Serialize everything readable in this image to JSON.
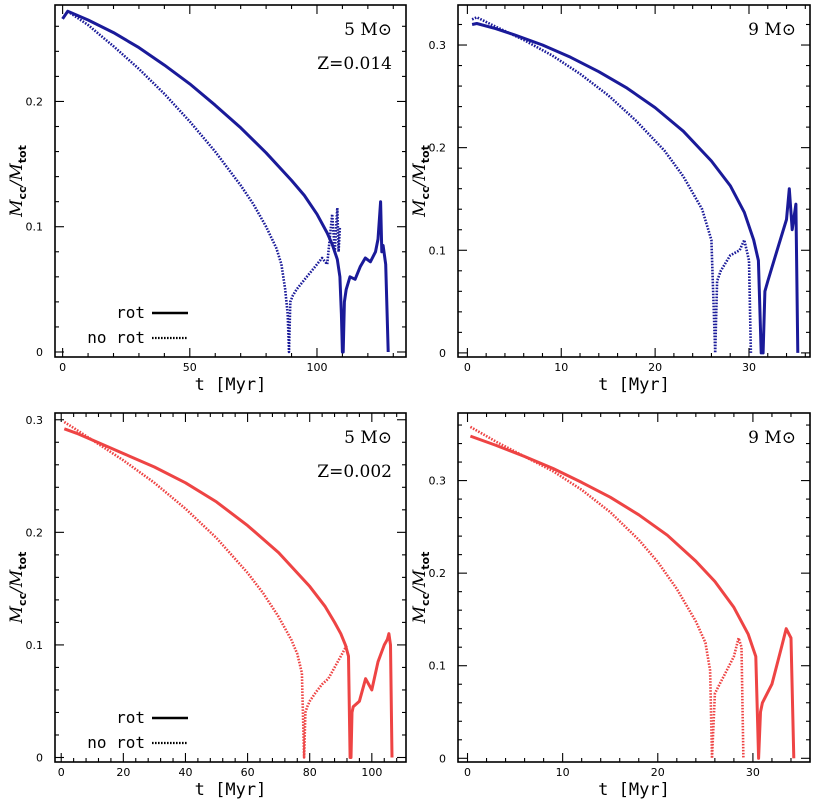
{
  "figure": {
    "width": 814,
    "height": 799
  },
  "legend_labels": {
    "solid": "rot",
    "dotted": "no rot"
  },
  "chart_data": [
    {
      "type": "line",
      "title": "",
      "xlabel": "t [Myr]",
      "ylabel": "M_cc/M_tot",
      "ylabel_main": "M",
      "ylabel_sub1": "cc",
      "ylabel_sub2": "tot",
      "xlim": [
        -3,
        135
      ],
      "ylim": [
        -0.004,
        0.277
      ],
      "xticks": [
        0,
        50,
        100
      ],
      "yticks": [
        0,
        0.1,
        0.2
      ],
      "ytick_labels": [
        "0",
        "0.1",
        "0.2"
      ],
      "color": "#1a1a99",
      "annotations": [
        "5 M⊙",
        "Z=0.014"
      ],
      "legend": [
        "rot",
        "no rot"
      ],
      "series": [
        {
          "name": "rot",
          "style": "solid",
          "x": [
            0,
            2,
            10,
            20,
            30,
            40,
            50,
            60,
            70,
            80,
            90,
            95,
            100,
            104,
            106,
            108,
            109,
            109.6,
            110,
            110.3,
            110.8,
            111.5,
            113,
            115,
            117,
            119,
            121,
            123,
            124,
            125,
            125.5,
            126,
            127,
            128
          ],
          "y": [
            0.266,
            0.272,
            0.265,
            0.255,
            0.243,
            0.229,
            0.214,
            0.197,
            0.179,
            0.159,
            0.137,
            0.125,
            0.11,
            0.095,
            0.086,
            0.074,
            0.06,
            0.03,
            0.0,
            0.0,
            0.04,
            0.05,
            0.06,
            0.058,
            0.068,
            0.075,
            0.072,
            0.08,
            0.09,
            0.12,
            0.08,
            0.085,
            0.07,
            0.0
          ]
        },
        {
          "name": "no rot",
          "style": "dotted",
          "x": [
            0,
            2,
            10,
            20,
            30,
            40,
            50,
            60,
            70,
            75,
            80,
            84,
            86,
            87.5,
            88.5,
            89,
            89.5,
            90.5,
            92,
            94,
            96,
            98,
            100,
            102,
            104,
            106,
            107,
            108,
            108.5,
            109
          ],
          "y": [
            0.266,
            0.272,
            0.261,
            0.244,
            0.226,
            0.206,
            0.184,
            0.16,
            0.133,
            0.118,
            0.1,
            0.083,
            0.07,
            0.05,
            0.03,
            0.0,
            0.04,
            0.045,
            0.05,
            0.055,
            0.06,
            0.065,
            0.07,
            0.075,
            0.07,
            0.11,
            0.08,
            0.115,
            0.08,
            0.1
          ]
        }
      ]
    },
    {
      "type": "line",
      "title": "",
      "xlabel": "t [Myr]",
      "ylabel": "M_cc/M_tot",
      "ylabel_main": "M",
      "ylabel_sub1": "cc",
      "ylabel_sub2": "tot",
      "xlim": [
        -1,
        36.5
      ],
      "ylim": [
        -0.004,
        0.339
      ],
      "xticks": [
        0,
        10,
        20,
        30
      ],
      "yticks": [
        0,
        0.1,
        0.2,
        0.3
      ],
      "ytick_labels": [
        "0",
        "0.1",
        "0.2",
        "0.3"
      ],
      "color": "#1a1a99",
      "annotations": [
        "9 M⊙"
      ],
      "legend": [],
      "series": [
        {
          "name": "rot",
          "style": "solid",
          "x": [
            0.5,
            1,
            3,
            5,
            8,
            11,
            14,
            17,
            20,
            23,
            26,
            28,
            29.5,
            30.5,
            31,
            31.3,
            31.5,
            31.7,
            32,
            33,
            34,
            34.3,
            34.6,
            35,
            35.2
          ],
          "y": [
            0.32,
            0.321,
            0.316,
            0.31,
            0.3,
            0.288,
            0.274,
            0.258,
            0.239,
            0.216,
            0.187,
            0.163,
            0.137,
            0.11,
            0.09,
            0.0,
            0.0,
            0.06,
            0.07,
            0.1,
            0.13,
            0.16,
            0.12,
            0.145,
            0.0
          ]
        },
        {
          "name": "no rot",
          "style": "dotted",
          "x": [
            0.5,
            1,
            3,
            6,
            9,
            12,
            15,
            18,
            21,
            23,
            25,
            26,
            26.4,
            26.6,
            27,
            28,
            29,
            29.5,
            30,
            30.2
          ],
          "y": [
            0.325,
            0.327,
            0.318,
            0.305,
            0.29,
            0.272,
            0.251,
            0.226,
            0.197,
            0.172,
            0.14,
            0.11,
            0.0,
            0.07,
            0.08,
            0.095,
            0.1,
            0.11,
            0.09,
            0.0
          ]
        }
      ]
    },
    {
      "type": "line",
      "title": "",
      "xlabel": "t [Myr]",
      "ylabel": "M_cc/M_tot",
      "ylabel_main": "M",
      "ylabel_sub1": "cc",
      "ylabel_sub2": "tot",
      "xlim": [
        -2,
        111
      ],
      "ylim": [
        -0.004,
        0.306
      ],
      "xticks": [
        0,
        20,
        40,
        60,
        80,
        100
      ],
      "yticks": [
        0,
        0.1,
        0.2,
        0.3
      ],
      "ytick_labels": [
        "0",
        "0.1",
        "0.2",
        "0.3"
      ],
      "color": "#ee4444",
      "annotations": [
        "5 M⊙",
        "Z=0.002"
      ],
      "legend": [
        "rot",
        "no rot"
      ],
      "series": [
        {
          "name": "rot",
          "style": "solid",
          "x": [
            1,
            5,
            10,
            20,
            30,
            40,
            50,
            60,
            70,
            80,
            85,
            88,
            90,
            91.5,
            92.5,
            93,
            93.3,
            93.6,
            94,
            96,
            98,
            100,
            102,
            104,
            105,
            105.5,
            106,
            106.5
          ],
          "y": [
            0.292,
            0.288,
            0.282,
            0.27,
            0.258,
            0.244,
            0.227,
            0.206,
            0.182,
            0.152,
            0.134,
            0.12,
            0.11,
            0.1,
            0.09,
            0.0,
            0.0,
            0.04,
            0.045,
            0.05,
            0.07,
            0.06,
            0.085,
            0.1,
            0.105,
            0.11,
            0.1,
            0.0
          ]
        },
        {
          "name": "no rot",
          "style": "dotted",
          "x": [
            1,
            5,
            10,
            20,
            30,
            40,
            50,
            60,
            65,
            70,
            74,
            76,
            77.5,
            78.2,
            78.6,
            79.2,
            80,
            82,
            84,
            86,
            88,
            90,
            92
          ],
          "y": [
            0.298,
            0.291,
            0.282,
            0.264,
            0.244,
            0.221,
            0.195,
            0.164,
            0.146,
            0.125,
            0.105,
            0.092,
            0.075,
            0.0,
            0.04,
            0.045,
            0.05,
            0.058,
            0.065,
            0.07,
            0.08,
            0.09,
            0.1
          ]
        }
      ]
    },
    {
      "type": "line",
      "title": "",
      "xlabel": "t [Myr]",
      "ylabel": "M_cc/M_tot",
      "ylabel_main": "M",
      "ylabel_sub1": "cc",
      "ylabel_sub2": "tot",
      "xlim": [
        -1,
        36
      ],
      "ylim": [
        -0.004,
        0.373
      ],
      "xticks": [
        0,
        10,
        20,
        30
      ],
      "yticks": [
        0,
        0.1,
        0.2,
        0.3
      ],
      "ytick_labels": [
        "0",
        "0.1",
        "0.2",
        "0.3"
      ],
      "color": "#ee4444",
      "annotations": [
        "9 M⊙"
      ],
      "legend": [],
      "series": [
        {
          "name": "rot",
          "style": "solid",
          "x": [
            0.3,
            3,
            6,
            9,
            12,
            15,
            18,
            21,
            24,
            26,
            28,
            29.5,
            30.3,
            30.6,
            30.8,
            31,
            32,
            33,
            33.5,
            34,
            34.3
          ],
          "y": [
            0.348,
            0.338,
            0.326,
            0.313,
            0.298,
            0.282,
            0.263,
            0.241,
            0.213,
            0.191,
            0.163,
            0.134,
            0.11,
            0.0,
            0.05,
            0.06,
            0.08,
            0.12,
            0.14,
            0.13,
            0.0
          ]
        },
        {
          "name": "no rot",
          "style": "dotted",
          "x": [
            0.3,
            3,
            6,
            9,
            12,
            15,
            18,
            20,
            22,
            24,
            25,
            25.5,
            25.7,
            26,
            26.5,
            27,
            28,
            28.5,
            28.8,
            29
          ],
          "y": [
            0.358,
            0.342,
            0.326,
            0.31,
            0.29,
            0.266,
            0.236,
            0.212,
            0.183,
            0.148,
            0.125,
            0.095,
            0.0,
            0.07,
            0.08,
            0.09,
            0.11,
            0.13,
            0.12,
            0.0
          ]
        }
      ]
    }
  ]
}
